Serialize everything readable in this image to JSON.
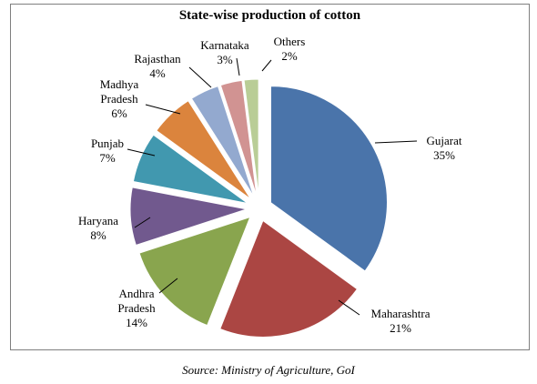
{
  "chart_data": {
    "type": "pie",
    "title": "State-wise production of cotton",
    "categories": [
      "Gujarat",
      "Maharashtra",
      "Andhra Pradesh",
      "Haryana",
      "Punjab",
      "Madhya Pradesh",
      "Rajasthan",
      "Karnataka",
      "Others"
    ],
    "values": [
      35,
      21,
      14,
      8,
      7,
      6,
      4,
      3,
      2
    ],
    "value_labels": [
      "35%",
      "21%",
      "14%",
      "8%",
      "7%",
      "6%",
      "4%",
      "3%",
      "2%"
    ],
    "label_lines": [
      [
        "Gujarat"
      ],
      [
        "Maharashtra"
      ],
      [
        "Andhra",
        "Pradesh"
      ],
      [
        "Haryana"
      ],
      [
        "Punjab"
      ],
      [
        "Madhya",
        "Pradesh"
      ],
      [
        "Rajasthan"
      ],
      [
        "Karnataka"
      ],
      [
        "Others"
      ]
    ],
    "colors": [
      "#4a74aa",
      "#ab4643",
      "#89a54e",
      "#71598e",
      "#4198af",
      "#db843d",
      "#93a9cf",
      "#d19392",
      "#b9cd96"
    ],
    "exploded": true,
    "legend": "none"
  },
  "source": "Source: Ministry of Agriculture, GoI"
}
